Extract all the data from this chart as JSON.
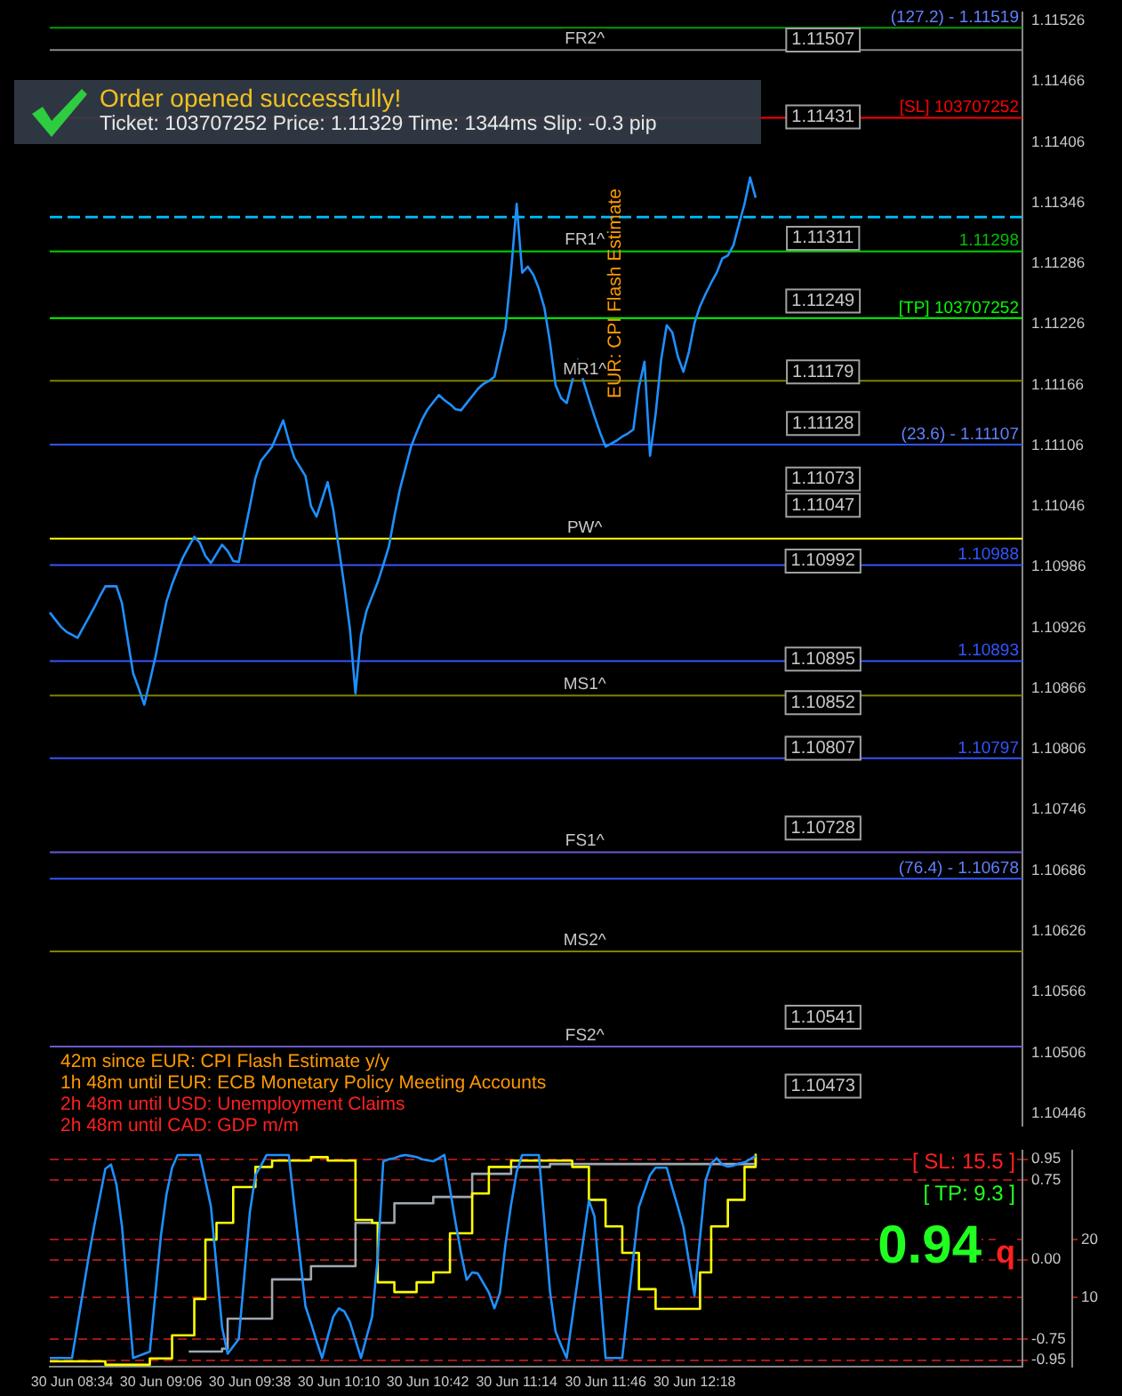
{
  "chart_data": [
    {
      "type": "line",
      "ylim": [
        1.10434,
        1.11534
      ],
      "tick_labels": "y",
      "marker": "none",
      "legend": false,
      "grid": false,
      "yticks": [
        1.10446,
        1.10506,
        1.10566,
        1.10626,
        1.10686,
        1.10746,
        1.10806,
        1.10866,
        1.10926,
        1.10986,
        1.11046,
        1.11106,
        1.11166,
        1.11226,
        1.11286,
        1.11346,
        1.11406,
        1.11466,
        1.11526
      ],
      "categories": [
        null,
        null,
        null,
        null,
        null,
        null,
        null,
        null,
        null,
        null,
        null,
        null,
        null,
        null,
        null,
        null,
        null,
        null,
        null,
        null,
        null,
        null,
        null,
        null,
        null,
        null,
        null,
        null,
        null,
        null,
        null,
        null,
        null,
        null,
        null,
        null,
        null,
        null,
        null,
        null,
        null,
        null,
        null,
        null,
        null,
        null,
        null,
        null,
        null,
        null,
        null,
        null,
        null,
        null,
        null,
        null,
        null,
        null,
        null,
        null,
        null,
        null,
        null,
        null,
        null,
        null,
        null,
        null,
        null,
        null,
        null,
        null,
        null,
        null,
        null,
        null,
        null,
        null,
        null,
        null,
        null,
        null,
        null,
        null,
        null,
        null,
        null,
        null,
        null,
        null,
        null,
        null,
        null,
        null,
        null,
        null,
        null,
        null,
        null,
        null,
        null,
        null,
        null,
        null,
        null,
        null,
        null,
        null,
        null,
        null,
        null,
        null,
        null,
        null,
        null,
        null,
        null,
        null,
        null,
        null,
        null,
        null,
        null,
        null,
        null,
        null,
        null,
        null,
        null,
        null,
        null,
        null,
        null,
        null,
        null,
        null,
        null,
        null,
        null,
        null,
        null,
        null,
        null,
        null,
        null,
        null,
        null,
        null,
        null,
        null,
        null,
        null,
        null,
        null,
        null,
        null,
        null,
        null,
        null,
        null,
        null,
        null,
        null,
        null,
        null,
        null,
        null,
        null,
        null,
        null,
        null,
        null,
        null,
        null,
        null,
        null
      ],
      "series": [
        {
          "color": "#1e90ff",
          "values": [
            1.10941,
            1.10934,
            1.10927,
            1.10922,
            1.10919,
            1.10916,
            1.10926,
            1.10936,
            1.10946,
            1.10957,
            1.10967,
            1.10967,
            1.10967,
            1.1095,
            1.10915,
            1.10881,
            1.10866,
            1.1085,
            1.10873,
            1.10897,
            1.10925,
            1.10952,
            1.10969,
            1.10983,
            1.10996,
            1.11006,
            1.11016,
            1.1101,
            1.10997,
            1.1099,
            1.10999,
            1.11008,
            1.11002,
            1.10992,
            1.10991,
            1.11019,
            1.11046,
            1.11074,
            1.11091,
            1.11098,
            1.11105,
            1.11118,
            1.11131,
            1.11111,
            1.11094,
            1.11085,
            1.11076,
            1.11046,
            1.11036,
            1.11053,
            1.1107,
            1.11043,
            1.11005,
            1.10967,
            1.10925,
            1.10861,
            1.10919,
            1.10943,
            1.10957,
            1.10971,
            1.10988,
            1.11006,
            1.11036,
            1.11063,
            1.11084,
            1.11105,
            1.11119,
            1.11132,
            1.11142,
            1.11149,
            1.11156,
            1.11151,
            1.11147,
            1.11142,
            1.11141,
            1.11148,
            1.11155,
            1.11162,
            1.11167,
            1.1117,
            1.11174,
            1.11198,
            1.11222,
            1.11278,
            1.11345,
            1.11277,
            1.11283,
            1.11275,
            1.11261,
            1.11242,
            1.11208,
            1.11166,
            1.11153,
            1.11148,
            1.1117,
            1.11191,
            1.1117,
            1.11152,
            1.11135,
            1.11119,
            1.11105,
            1.11108,
            1.11111,
            1.11115,
            1.11118,
            1.11122,
            1.11164,
            1.11189,
            1.11096,
            1.11137,
            1.11191,
            1.11225,
            1.11218,
            1.11194,
            1.11179,
            1.11199,
            1.11227,
            1.11244,
            1.11256,
            1.11267,
            1.11277,
            1.11291,
            1.11294,
            1.11304,
            1.11325,
            1.11345,
            1.11371,
            1.11351,
            null,
            null,
            null,
            null,
            null,
            null,
            null,
            null,
            null,
            null,
            null,
            null,
            null,
            null,
            null,
            null,
            null,
            null,
            null,
            null,
            null,
            null,
            null,
            null,
            null,
            null,
            null,
            null,
            null,
            null,
            null,
            null,
            null,
            null,
            null,
            null,
            null,
            null,
            null,
            null,
            null,
            null,
            null,
            null,
            null,
            null,
            null,
            null
          ]
        }
      ],
      "ref_lines": [
        {
          "axis": "y",
          "value": 1.11519,
          "label": null,
          "color": "#00a000"
        },
        {
          "axis": "y",
          "value": 1.11497,
          "label": "FR2^",
          "color": "#8a8a8a"
        },
        {
          "axis": "y",
          "value": 1.1143,
          "label": "[SL] 103707252",
          "color": "#ff0000"
        },
        {
          "axis": "y",
          "value": 1.11332,
          "label": null,
          "color": "#00bfff",
          "line_style": "dashed"
        },
        {
          "axis": "y",
          "value": 1.11298,
          "label": "FR1^",
          "color": "#008000"
        },
        {
          "axis": "y",
          "value": 1.11298,
          "label": "1.11298",
          "color": "#00c000"
        },
        {
          "axis": "y",
          "value": 1.11232,
          "label": "[TP] 103707252",
          "color": "#00ff00"
        },
        {
          "axis": "y",
          "value": 1.1117,
          "label": "MR1^",
          "color": "#808000"
        },
        {
          "axis": "y",
          "value": 1.11107,
          "label": null,
          "color": "#3355ff"
        },
        {
          "axis": "y",
          "value": 1.11014,
          "label": "PW^",
          "color": "#ffff00"
        },
        {
          "axis": "y",
          "value": 1.10988,
          "label": "1.10988",
          "color": "#3355ff"
        },
        {
          "axis": "y",
          "value": 1.10893,
          "label": "1.10893",
          "color": "#3355ff"
        },
        {
          "axis": "y",
          "value": 1.10859,
          "label": "MS1^",
          "color": "#808000"
        },
        {
          "axis": "y",
          "value": 1.10797,
          "label": "1.10797",
          "color": "#3355ff"
        },
        {
          "axis": "y",
          "value": 1.10704,
          "label": "FS1^",
          "color": "#6a5acd"
        },
        {
          "axis": "y",
          "value": 1.10678,
          "label": null,
          "color": "#3355ff"
        },
        {
          "axis": "y",
          "value": 1.10606,
          "label": "MS2^",
          "color": "#808000"
        },
        {
          "axis": "y",
          "value": 1.10512,
          "label": "FS2^",
          "color": "#6a5acd"
        }
      ],
      "annotations": [
        "Order opened successfully!",
        "Ticket: 103707252  Price: 1.11329  Time: 1344ms  Slip: -0.3 pip",
        "EUR: CPI Flash Estimate",
        "42m since EUR: CPI Flash Estimate y/y",
        "1h 48m until EUR: ECB Monetary Policy Meeting Accounts",
        "2h 48m until USD: Unemployment Claims",
        "2h 48m until CAD: GDP m/m",
        {
          "text": "(127.2) - 1.11519",
          "y": 1.11519
        },
        {
          "text": "(23.6) - 1.11107",
          "y": 1.11107
        },
        {
          "text": "(76.4) - 1.10678",
          "y": 1.10678
        },
        {
          "text": "1.11507",
          "y": 1.11507
        },
        {
          "text": "1.11431",
          "y": 1.11431
        },
        {
          "text": "1.11311",
          "y": 1.11311
        },
        {
          "text": "1.11249",
          "y": 1.11249
        },
        {
          "text": "1.11179",
          "y": 1.11179
        },
        {
          "text": "1.11128",
          "y": 1.11128
        },
        {
          "text": "1.11073",
          "y": 1.11073
        },
        {
          "text": "1.11047",
          "y": 1.11047
        },
        {
          "text": "1.10992",
          "y": 1.10992
        },
        {
          "text": "1.10895",
          "y": 1.10895
        },
        {
          "text": "1.10852",
          "y": 1.10852
        },
        {
          "text": "1.10807",
          "y": 1.10807
        },
        {
          "text": "1.10728",
          "y": 1.10728
        },
        {
          "text": "1.10541",
          "y": 1.10541
        },
        {
          "text": "1.10473",
          "y": 1.10473
        }
      ]
    },
    {
      "type": "line",
      "ylim": [
        -1.01,
        1.03
      ],
      "y2lim": [
        -2,
        35.4
      ],
      "marker": "none",
      "legend": false,
      "grid": "y",
      "categories": [
        null,
        null,
        null,
        null,
        "30 Jun 08:34",
        null,
        null,
        null,
        null,
        null,
        null,
        null,
        null,
        null,
        null,
        null,
        null,
        null,
        null,
        null,
        "30 Jun 09:06",
        null,
        null,
        null,
        null,
        null,
        null,
        null,
        null,
        null,
        null,
        null,
        null,
        null,
        null,
        null,
        "30 Jun 09:38",
        null,
        null,
        null,
        null,
        null,
        null,
        null,
        null,
        null,
        null,
        null,
        null,
        null,
        null,
        null,
        "30 Jun 10:10",
        null,
        null,
        null,
        null,
        null,
        null,
        null,
        null,
        null,
        null,
        null,
        null,
        null,
        null,
        null,
        "30 Jun 10:42",
        null,
        null,
        null,
        null,
        null,
        null,
        null,
        null,
        null,
        null,
        null,
        null,
        null,
        null,
        null,
        "30 Jun 11:14",
        null,
        null,
        null,
        null,
        null,
        null,
        null,
        null,
        null,
        null,
        null,
        null,
        null,
        null,
        null,
        "30 Jun 11:46",
        null,
        null,
        null,
        null,
        null,
        null,
        null,
        null,
        null,
        null,
        null,
        null,
        null,
        null,
        null,
        "30 Jun 12:18",
        null,
        null,
        null,
        null,
        null,
        null,
        null,
        null,
        null,
        null,
        null,
        null,
        null,
        null,
        null,
        null,
        null,
        null,
        null,
        null,
        null,
        null,
        null,
        null,
        null,
        null,
        null,
        null,
        null,
        null,
        null,
        null,
        null,
        null,
        null,
        null,
        null,
        null,
        null,
        null,
        null,
        null,
        null,
        null,
        null,
        null,
        null,
        null,
        null,
        null,
        null,
        null,
        null,
        null,
        null,
        null,
        null,
        null,
        null
      ],
      "yticks": [
        0.95,
        0.75,
        {
          "value": 0,
          "label": "0.00"
        },
        -0.75,
        -0.95
      ],
      "y2ticks": [
        10,
        20
      ],
      "series": [
        {
          "color": "#1e90ff",
          "values": [
            -0.93,
            -0.93,
            -0.93,
            -0.93,
            -0.93,
            -0.61,
            -0.29,
            0.03,
            0.32,
            0.59,
            0.86,
            0.9,
            0.71,
            0.31,
            -0.31,
            -0.93,
            -0.91,
            -0.89,
            -0.87,
            -0.32,
            0.23,
            0.62,
            0.87,
            0.99,
            0.99,
            0.99,
            0.99,
            0.99,
            0.75,
            0.5,
            -0.07,
            -0.64,
            -0.89,
            -0.82,
            -0.75,
            -0.15,
            0.45,
            0.8,
            0.89,
            0.99,
            0.99,
            0.99,
            0.99,
            0.99,
            0.51,
            0.04,
            -0.44,
            -0.6,
            -0.77,
            -0.93,
            -0.73,
            -0.54,
            -0.46,
            -0.49,
            -0.59,
            -0.76,
            -0.93,
            -0.73,
            -0.54,
            0.02,
            0.93,
            0.95,
            0.96,
            0.98,
            0.99,
            0.98,
            0.97,
            0.95,
            0.94,
            0.93,
            0.96,
            0.99,
            0.67,
            0.35,
            0.06,
            -0.19,
            -0.12,
            -0.13,
            -0.22,
            -0.31,
            -0.46,
            -0.31,
            0.15,
            0.52,
            0.83,
            0.99,
            0.99,
            0.99,
            0.99,
            0.35,
            -0.3,
            -0.68,
            -0.81,
            -0.93,
            -0.56,
            -0.18,
            0.19,
            0.56,
            0.41,
            -0.26,
            -0.93,
            -0.93,
            -0.93,
            -0.93,
            -0.45,
            0.02,
            0.5,
            0.65,
            0.8,
            0.87,
            0.87,
            0.87,
            0.68,
            0.5,
            0.31,
            -0.02,
            -0.34,
            0.21,
            0.75,
            0.91,
            0.96,
            0.9,
            0.88,
            0.89,
            0.91,
            0.92,
            0.95,
            0.98,
            null,
            null,
            null,
            null,
            null,
            null,
            null,
            null,
            null,
            null,
            null,
            null,
            null,
            null,
            null,
            null,
            null,
            null,
            null,
            null,
            null,
            null,
            null,
            null,
            null,
            null,
            null,
            null,
            null,
            null,
            null,
            null,
            null,
            null,
            null,
            null,
            null,
            null,
            null,
            null,
            null,
            null,
            null,
            null,
            null,
            null,
            null,
            null
          ]
        },
        {
          "type": "step",
          "axis": "y2",
          "color": "#ffff00",
          "values": [
            -1.1,
            -1.1,
            -1.1,
            -1.1,
            -1.1,
            -1.1,
            -1.1,
            -1.1,
            -1.1,
            -1.1,
            -1.7,
            -1.7,
            -1.7,
            -1.7,
            -1.7,
            -1.7,
            -1.7,
            -1.7,
            -0.6,
            -0.6,
            -0.6,
            -0.6,
            3.4,
            3.4,
            3.4,
            3.4,
            9.7,
            9.7,
            20,
            20,
            22.9,
            22.9,
            22.9,
            29.1,
            29.1,
            29.1,
            29.1,
            32.6,
            32.6,
            32.6,
            33.7,
            33.7,
            33.7,
            33.7,
            33.7,
            33.7,
            33.7,
            34.3,
            34.3,
            34.3,
            33.7,
            33.7,
            33.7,
            33.7,
            33.7,
            23.4,
            23.4,
            23.4,
            22.9,
            12.6,
            12.6,
            12.6,
            10.9,
            10.9,
            10.9,
            10.9,
            12.6,
            12.6,
            12.6,
            14.3,
            14.3,
            14.3,
            21.1,
            21.1,
            21.1,
            21.1,
            28,
            28,
            28,
            32.6,
            32.6,
            32.6,
            32.6,
            33.7,
            33.7,
            33.7,
            33.7,
            33.7,
            33.7,
            33.7,
            33.7,
            33.7,
            33.7,
            33.7,
            32.6,
            32.6,
            32.6,
            26.9,
            26.9,
            26.9,
            22.3,
            22.3,
            22.3,
            17.7,
            17.7,
            17.7,
            11.4,
            11.4,
            11.4,
            8.0,
            8.0,
            8.0,
            8.0,
            8.0,
            8.0,
            8.0,
            8.0,
            14.3,
            14.3,
            22.3,
            22.3,
            22.3,
            26.9,
            26.9,
            26.9,
            32.6,
            32.6,
            34.9,
            null,
            null,
            null,
            null,
            null,
            null,
            null,
            null,
            null,
            null,
            null,
            null,
            null,
            null,
            null,
            null,
            null,
            null,
            null,
            null,
            null,
            null,
            null,
            null,
            null,
            null,
            null,
            null,
            null,
            null,
            null,
            null,
            null,
            null,
            null,
            null,
            null,
            null,
            null,
            null,
            null,
            null,
            null,
            null,
            null,
            null,
            null,
            null
          ]
        },
        {
          "type": "step",
          "axis": "y2",
          "color": "#a0a8b0",
          "values": [
            null,
            null,
            null,
            null,
            null,
            null,
            null,
            null,
            null,
            null,
            null,
            null,
            null,
            null,
            null,
            null,
            null,
            null,
            null,
            null,
            null,
            null,
            null,
            null,
            null,
            0.6,
            0.6,
            0.6,
            0.6,
            0.6,
            0.6,
            1.1,
            6.3,
            6.3,
            6.3,
            6.3,
            6.3,
            6.3,
            6.3,
            6.3,
            13.1,
            13.1,
            13.1,
            13.1,
            13.1,
            13.1,
            13.1,
            15.4,
            15.4,
            15.4,
            15.4,
            15.4,
            15.4,
            15.4,
            15.4,
            22.9,
            22.9,
            22.9,
            22.9,
            22.9,
            22.9,
            22.9,
            26.3,
            26.3,
            26.3,
            26.3,
            26.3,
            26.3,
            26.3,
            27.4,
            27.4,
            27.4,
            27.4,
            27.4,
            27.4,
            27.4,
            31.4,
            31.4,
            31.4,
            31.4,
            31.4,
            31.4,
            31.4,
            32.6,
            32.6,
            32.6,
            32.6,
            32.6,
            32.6,
            32.6,
            33.1,
            33.1,
            33.1,
            33.1,
            33.1,
            33.1,
            33.1,
            33.1,
            33.1,
            33.1,
            33.1,
            33.1,
            33.1,
            33.1,
            33.1,
            33.1,
            33.1,
            33.1,
            33.1,
            33.1,
            33.1,
            33.1,
            33.1,
            33.1,
            33.1,
            33.1,
            33.1,
            33.1,
            33.1,
            33.1,
            33.1,
            33.1,
            33.1,
            33.1,
            33.1,
            33.1,
            33.1,
            34.3,
            null,
            null,
            null,
            null,
            null,
            null,
            null,
            null,
            null,
            null,
            null,
            null,
            null,
            null,
            null,
            null,
            null,
            null,
            null,
            null,
            null,
            null,
            null,
            null,
            null,
            null,
            null,
            null,
            null,
            null,
            null,
            null,
            null,
            null,
            null,
            null,
            null,
            null,
            null,
            null,
            null,
            null,
            null,
            null,
            null,
            null,
            null,
            null
          ]
        }
      ],
      "annotations": [
        "[ SL: 15.5 ]",
        "[ TP: 9.3 ]",
        "0.94",
        "q"
      ]
    }
  ]
}
